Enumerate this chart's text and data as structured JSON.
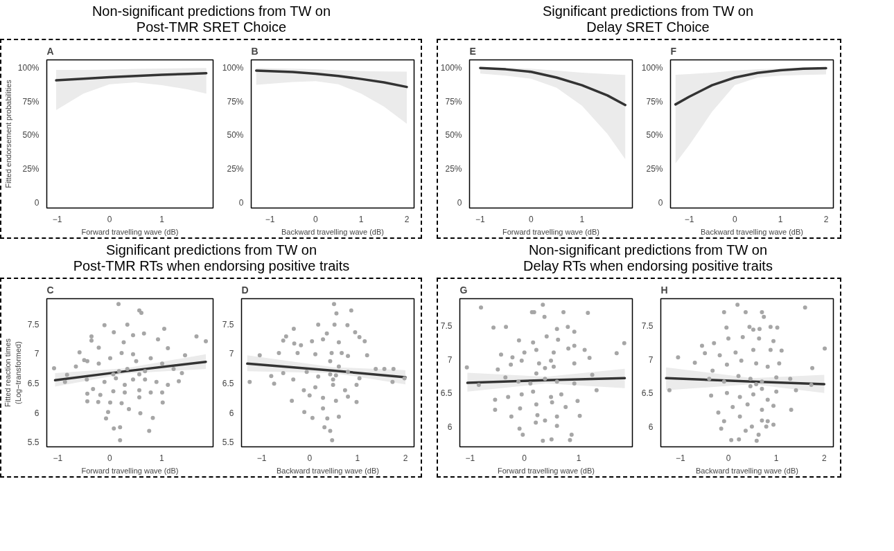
{
  "chart_data": [
    {
      "type": "line",
      "title": "A",
      "subtitle": "Non-significant predictions from TW on\nPost-TMR SRET Choice",
      "xlabel": "Forward travelling wave (dB)",
      "ylabel": "Fitted endorsement probabilities",
      "xlim": [
        -1.2,
        1.98
      ],
      "ylim": [
        -4,
        106
      ],
      "xticks": [
        -1,
        0,
        1
      ],
      "yticks": [
        0,
        {
          "value": 25,
          "label": "25%"
        },
        {
          "value": 50,
          "label": "50%"
        },
        {
          "value": 75,
          "label": "75%"
        },
        {
          "value": 100,
          "label": "100%"
        }
      ],
      "grid": false,
      "series": [
        {
          "color": "#333333",
          "x": [
            -1.02,
            -0.5,
            0,
            0.5,
            1,
            1.5,
            1.85
          ],
          "values": [
            90.8,
            92,
            93.2,
            94.1,
            94.9,
            95.6,
            96.1
          ],
          "lower": [
            68.7,
            81,
            87.9,
            89.3,
            87.3,
            84,
            81
          ],
          "upper": [
            98.6,
            98.6,
            98.8,
            99.3,
            99.6,
            99.8,
            100
          ]
        }
      ]
    },
    {
      "type": "line",
      "title": "B",
      "xlabel": "Backward travelling wave (dB)",
      "xlim": [
        -1.41,
        2.16
      ],
      "ylim": [
        -4,
        106
      ],
      "xticks": [
        -1,
        0,
        1,
        2
      ],
      "yticks": [
        0,
        {
          "value": 25,
          "label": "25%"
        },
        {
          "value": 50,
          "label": "50%"
        },
        {
          "value": 75,
          "label": "75%"
        },
        {
          "value": 100,
          "label": "100%"
        }
      ],
      "grid": false,
      "series": [
        {
          "color": "#333333",
          "x": [
            -1.3,
            -0.5,
            0,
            0.5,
            1,
            1.5,
            2
          ],
          "values": [
            98,
            97,
            95.7,
            94.1,
            91.8,
            89.3,
            85.9
          ],
          "lower": [
            87.5,
            89.5,
            90.2,
            87.9,
            81,
            71.3,
            58.6
          ],
          "upper": [
            100,
            99.5,
            99,
            98.3,
            97.7,
            97.4,
            97.3
          ]
        }
      ]
    },
    {
      "type": "line",
      "title": "E",
      "subtitle": "Significant predictions from TW on\nDelay SRET Choice",
      "xlabel": "Forward travelling wave (dB)",
      "xlim": [
        -1.21,
        1.99
      ],
      "ylim": [
        -4,
        106
      ],
      "xticks": [
        -1,
        0,
        1
      ],
      "yticks": [
        0,
        {
          "value": 25,
          "label": "25%"
        },
        {
          "value": 50,
          "label": "50%"
        },
        {
          "value": 75,
          "label": "75%"
        },
        {
          "value": 100,
          "label": "100%"
        }
      ],
      "grid": false,
      "series": [
        {
          "color": "#333333",
          "x": [
            -1,
            -0.5,
            0,
            0.5,
            1,
            1.5,
            1.85
          ],
          "values": [
            100,
            99,
            97.1,
            92.9,
            87.2,
            79.6,
            72.5
          ],
          "lower": [
            95.8,
            94.3,
            92,
            85.3,
            72,
            51,
            32.3
          ],
          "upper": [
            100,
            100,
            99.5,
            98,
            96.5,
            95.5,
            94.8
          ]
        }
      ]
    },
    {
      "type": "line",
      "title": "F",
      "xlabel": "Backward travelling wave (dB)",
      "xlim": [
        -1.41,
        2.16
      ],
      "ylim": [
        -4,
        106
      ],
      "xticks": [
        -1,
        0,
        1,
        2
      ],
      "yticks": [
        0,
        {
          "value": 25,
          "label": "25%"
        },
        {
          "value": 50,
          "label": "50%"
        },
        {
          "value": 75,
          "label": "75%"
        },
        {
          "value": 100,
          "label": "100%"
        }
      ],
      "grid": false,
      "series": [
        {
          "color": "#333333",
          "x": [
            -1.3,
            -1,
            -0.5,
            0,
            0.5,
            1,
            1.5,
            2
          ],
          "values": [
            72.9,
            78.6,
            87.2,
            92.9,
            96.4,
            98.3,
            99.4,
            99.8
          ],
          "lower": [
            29.2,
            42.6,
            67.4,
            87.2,
            92.9,
            94.3,
            94.8,
            95.2
          ],
          "upper": [
            95,
            95.5,
            96.5,
            98,
            99,
            99.6,
            100,
            100
          ]
        }
      ]
    },
    {
      "type": "scatter",
      "title": "C",
      "subtitle": "Significant predictions from TW on\nPost-TMR RTs when endorsing positive traits",
      "xlabel": "Forward travelling wave (dB)",
      "ylabel": "Fitted reaction times\n(Log−transformed)",
      "xlim": [
        -1.21,
        1.99
      ],
      "ylim": [
        5.42,
        7.93
      ],
      "xticks": [
        -1,
        0,
        1
      ],
      "yticks": [
        5.5,
        6.0,
        6.5,
        7.0,
        7.5
      ],
      "grid": false,
      "series": [
        {
          "color": "#a6a6a6",
          "x": [
            0.17,
            0.57,
            0.61,
            -0.1,
            0.34,
            1.67,
            1.85,
            -0.35,
            -0.35,
            0.08,
            0.66,
            1.05,
            -0.58,
            -0.49,
            -0.21,
            0.27,
            0.45,
            0.93,
            1.12,
            1.45,
            -1.07,
            -0.82,
            -0.65,
            -0.43,
            -0.21,
            0.01,
            0.23,
            0.51,
            0.79,
            1.01,
            1.23,
            1.39,
            -0.86,
            -0.44,
            -0.32,
            -0.1,
            0.12,
            0.29,
            0.45,
            0.68,
            0.9,
            1.12,
            1.33,
            -0.43,
            -0.18,
            0.07,
            0.29,
            0.57,
            0.79,
            1.01,
            -0.43,
            -0.22,
            0.01,
            0.23,
            0.57,
            1.02,
            -0.03,
            -0.07,
            0.37,
            0.59,
            0.83,
            0.08,
            0.2,
            0.76,
            0.2,
            0.45,
            0.34,
            0.68,
            0.57,
            0.18,
            0.07
          ],
          "values": [
            7.84,
            7.73,
            7.69,
            7.48,
            7.49,
            7.29,
            7.21,
            7.29,
            7.22,
            7.36,
            7.34,
            7.42,
            7.02,
            6.89,
            7.1,
            7.19,
            7.31,
            7.24,
            7.09,
            6.97,
            6.75,
            6.64,
            6.78,
            6.87,
            6.83,
            6.92,
            7.01,
            6.87,
            6.92,
            6.83,
            6.74,
            6.67,
            6.52,
            6.56,
            6.4,
            6.52,
            6.58,
            6.47,
            6.56,
            6.56,
            6.52,
            6.47,
            6.53,
            6.32,
            6.3,
            6.36,
            6.34,
            6.38,
            6.34,
            6.34,
            6.19,
            6.18,
            6.17,
            6.16,
            6.26,
            6.17,
            6.01,
            5.9,
            6.06,
            5.99,
            5.91,
            5.73,
            5.75,
            5.69,
            5.53,
            6.99,
            6.74,
            6.7,
            6.65,
            6.7,
            6.65
          ]
        },
        {
          "type": "line",
          "color": "#333333",
          "x": [
            -1.05,
            0.3,
            1.85
          ],
          "values": [
            6.55,
            6.7,
            6.86
          ],
          "lower": [
            6.44,
            6.66,
            6.74
          ],
          "upper": [
            6.67,
            6.75,
            6.99
          ]
        }
      ]
    },
    {
      "type": "scatter",
      "title": "D",
      "xlabel": "Backward travelling wave (dB)",
      "xlim": [
        -1.42,
        2.18
      ],
      "ylim": [
        5.42,
        7.93
      ],
      "xticks": [
        -1,
        0,
        1,
        2
      ],
      "yticks": [
        5.5,
        6.0,
        6.5,
        7.0,
        7.5
      ],
      "grid": false,
      "series": [
        {
          "color": "#a6a6a6",
          "x": [
            0.51,
            0.56,
            0.87,
            -0.33,
            0.18,
            0.52,
            0.79,
            0.36,
            0.95,
            -0.55,
            -0.49,
            -0.32,
            -0.18,
            0.05,
            0.28,
            0.61,
            1.04,
            1.15,
            -1.04,
            -0.64,
            -0.25,
            0.12,
            0.46,
            0.8,
            1.2,
            -1.25,
            -0.8,
            -0.55,
            -0.34,
            -0.06,
            0.18,
            0.43,
            0.55,
            0.8,
            1.04,
            1.38,
            1.56,
            1.73,
            1.75,
            1.98,
            -0.74,
            -0.12,
            0.12,
            0.49,
            0.74,
            0.98,
            -0.37,
            0.0,
            0.28,
            0.55,
            0.8,
            0.98,
            -0.11,
            0.06,
            0.37,
            0.61,
            0.28,
            0.31,
            0.43,
            0.47,
            0.43,
            0.61,
            0.49,
            0.67
          ],
          "values": [
            7.84,
            7.68,
            7.73,
            7.42,
            7.49,
            7.49,
            7.48,
            7.34,
            7.36,
            7.22,
            7.29,
            7.17,
            7.14,
            7.21,
            7.24,
            7.19,
            7.28,
            7.21,
            6.97,
            7.01,
            7.01,
            6.99,
            7.01,
            6.96,
            6.97,
            6.52,
            6.62,
            6.67,
            6.56,
            6.69,
            6.61,
            6.65,
            6.63,
            6.69,
            6.58,
            6.74,
            6.74,
            6.52,
            6.74,
            6.58,
            6.49,
            6.38,
            6.43,
            6.47,
            6.38,
            6.47,
            6.2,
            6.29,
            6.25,
            6.2,
            6.27,
            6.18,
            6.01,
            5.91,
            5.9,
            5.93,
            6.07,
            5.75,
            5.69,
            5.53,
            6.87,
            6.78,
            6.56,
            7.01
          ]
        },
        {
          "type": "line",
          "color": "#333333",
          "x": [
            -1.3,
            0.5,
            2.0
          ],
          "values": [
            6.83,
            6.71,
            6.6
          ],
          "lower": [
            6.7,
            6.67,
            6.48
          ],
          "upper": [
            6.97,
            6.77,
            6.72
          ]
        }
      ]
    },
    {
      "type": "scatter",
      "title": "G",
      "subtitle": "Non-significant predictions from TW on\nDelay RTs when endorsing positive traits",
      "xlabel": "Forward travelling wave (dB)",
      "xlim": [
        -1.19,
        1.99
      ],
      "ylim": [
        5.7,
        7.9
      ],
      "xticks": [
        -1,
        0,
        1
      ],
      "yticks": [
        6.0,
        6.5,
        7.0,
        7.5
      ],
      "grid": false,
      "series": [
        {
          "color": "#a6a6a6",
          "x": [
            -0.8,
            0.34,
            0.14,
            0.18,
            0.37,
            0.72,
            1.17,
            -0.57,
            -0.34,
            0.6,
            0.8,
            0.92,
            1.84,
            1.7,
            -0.1,
            0.16,
            0.41,
            0.62,
            0.92,
            -0.43,
            -0.22,
            0.0,
            0.22,
            0.54,
            0.81,
            1.11,
            1.2,
            -1.06,
            -0.84,
            -0.49,
            -0.25,
            -0.05,
            0.27,
            0.54,
            0.92,
            1.25,
            1.33,
            -0.35,
            -0.11,
            0.11,
            0.38,
            0.6,
            0.92,
            -0.54,
            -0.3,
            -0.05,
            0.16,
            0.49,
            0.68,
            0.98,
            -0.54,
            -0.24,
            -0.08,
            0.22,
            0.51,
            0.76,
            1.02,
            0.24,
            0.6,
            0.38,
            -0.09,
            -0.03,
            0.21,
            0.6,
            0.87,
            0.34,
            0.5,
            0.84,
            0.38,
            0.49,
            0.22
          ],
          "values": [
            7.77,
            7.81,
            7.7,
            7.7,
            7.63,
            7.7,
            7.69,
            7.47,
            7.48,
            7.45,
            7.48,
            7.41,
            7.24,
            7.09,
            7.28,
            7.25,
            7.34,
            7.29,
            7.2,
            7.07,
            7.03,
            7.1,
            7.14,
            7.1,
            7.16,
            7.14,
            7.02,
            6.88,
            6.62,
            6.85,
            6.92,
            6.98,
            6.94,
            6.89,
            6.94,
            6.77,
            6.54,
            6.73,
            6.67,
            6.64,
            6.71,
            6.67,
            6.64,
            6.4,
            6.44,
            6.48,
            6.52,
            6.44,
            6.48,
            6.38,
            6.25,
            6.15,
            6.27,
            6.33,
            6.36,
            6.29,
            6.16,
            6.17,
            6.15,
            6.09,
            5.97,
            5.88,
            6.06,
            6.01,
            5.88,
            5.79,
            5.81,
            5.8,
            6.87,
            6.98,
            6.79
          ]
        },
        {
          "type": "line",
          "color": "#333333",
          "x": [
            -1.05,
            0.4,
            1.85
          ],
          "values": [
            6.65,
            6.69,
            6.72
          ],
          "lower": [
            6.52,
            6.64,
            6.57
          ],
          "upper": [
            6.8,
            6.74,
            6.86
          ]
        }
      ]
    },
    {
      "type": "scatter",
      "title": "H",
      "xlabel": "Backward travelling wave (dB)",
      "xlim": [
        -1.41,
        2.19
      ],
      "ylim": [
        5.7,
        7.9
      ],
      "xticks": [
        -1,
        0,
        1,
        2
      ],
      "yticks": [
        6.0,
        6.5,
        7.0,
        7.5
      ],
      "grid": false,
      "series": [
        {
          "color": "#a6a6a6",
          "x": [
            0.19,
            -0.09,
            0.36,
            0.7,
            0.74,
            1.6,
            -0.04,
            0.44,
            0.52,
            0.65,
            0.88,
            1.02,
            -0.55,
            -0.3,
            0.0,
            0.3,
            0.64,
            0.94,
            -1.05,
            -0.49,
            -0.18,
            0.15,
            0.52,
            0.88,
            1.11,
            2.01,
            -1.23,
            -0.7,
            -0.33,
            -0.03,
            0.27,
            0.58,
            0.82,
            1.06,
            1.75,
            1.73,
            -0.4,
            -0.09,
            0.21,
            0.46,
            0.7,
            1.0,
            1.41,
            1.29,
            -0.36,
            -0.03,
            0.24,
            0.52,
            0.82,
            1.0,
            -0.21,
            0.09,
            0.4,
            0.7,
            0.94,
            1.31,
            -0.09,
            0.24,
            0.7,
            0.82,
            -0.15,
            0.36,
            0.49,
            0.79,
            0.94,
            0.06,
            0.22,
            0.59,
            0.63,
            0.58,
            0.46,
            0.7
          ],
          "values": [
            7.81,
            7.7,
            7.7,
            7.7,
            7.63,
            7.77,
            7.47,
            7.48,
            7.44,
            7.45,
            7.48,
            7.47,
            7.2,
            7.24,
            7.31,
            7.33,
            7.31,
            7.27,
            7.03,
            7.09,
            7.06,
            7.1,
            7.14,
            7.14,
            7.13,
            7.16,
            6.54,
            6.95,
            6.83,
            6.92,
            6.98,
            6.94,
            6.89,
            6.94,
            6.87,
            6.62,
            6.71,
            6.67,
            6.75,
            6.71,
            6.67,
            6.73,
            6.54,
            6.71,
            6.46,
            6.5,
            6.44,
            6.48,
            6.4,
            6.52,
            6.21,
            6.29,
            6.33,
            6.25,
            6.31,
            6.25,
            6.08,
            6.15,
            6.09,
            6.08,
            5.97,
            5.94,
            6.0,
            6.0,
            6.03,
            5.8,
            5.81,
            5.79,
            5.88,
            6.63,
            6.6,
            6.56
          ]
        },
        {
          "type": "line",
          "color": "#333333",
          "x": [
            -1.3,
            0.5,
            2.0
          ],
          "values": [
            6.72,
            6.67,
            6.63
          ],
          "lower": [
            6.54,
            6.63,
            6.5
          ],
          "upper": [
            6.88,
            6.72,
            6.77
          ]
        }
      ]
    }
  ]
}
